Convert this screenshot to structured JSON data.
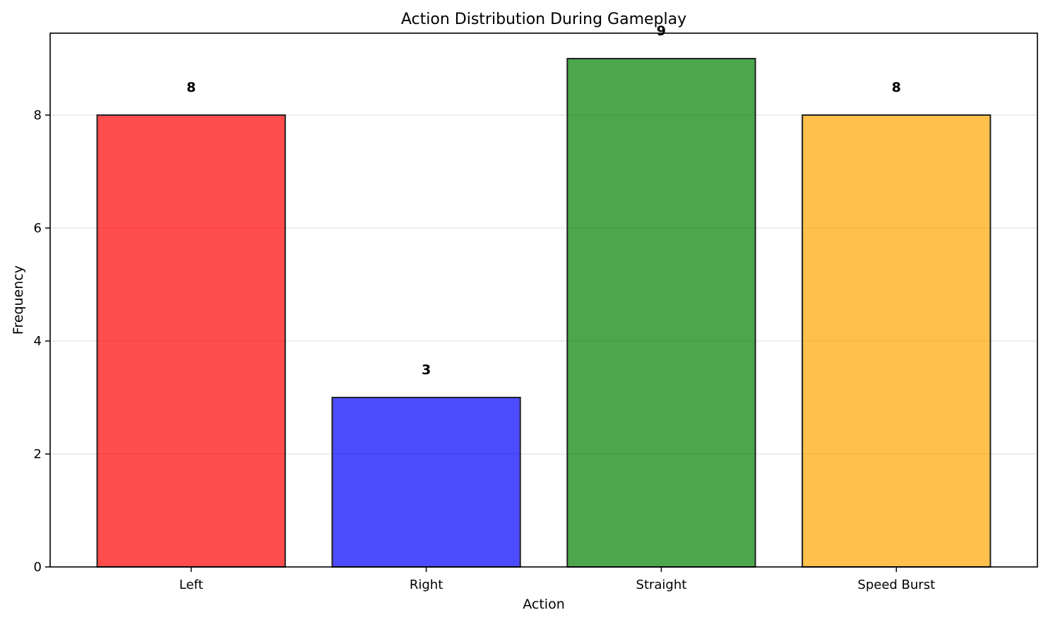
{
  "chart_data": {
    "type": "bar",
    "title": "Action Distribution During Gameplay",
    "xlabel": "Action",
    "ylabel": "Frequency",
    "categories": [
      "Left",
      "Right",
      "Straight",
      "Speed Burst"
    ],
    "values": [
      8,
      3,
      9,
      8
    ],
    "data_labels": [
      "8",
      "3",
      "9",
      "8"
    ],
    "colors": [
      "#ff0000",
      "#0000ff",
      "#008000",
      "#ffa500"
    ],
    "ylim": [
      0,
      9.45
    ],
    "yticks": [
      0,
      2,
      4,
      6,
      8
    ],
    "ytick_labels": [
      "0",
      "2",
      "4",
      "6",
      "8"
    ],
    "grid": "y-axis, dashed-light",
    "legend": "none"
  }
}
